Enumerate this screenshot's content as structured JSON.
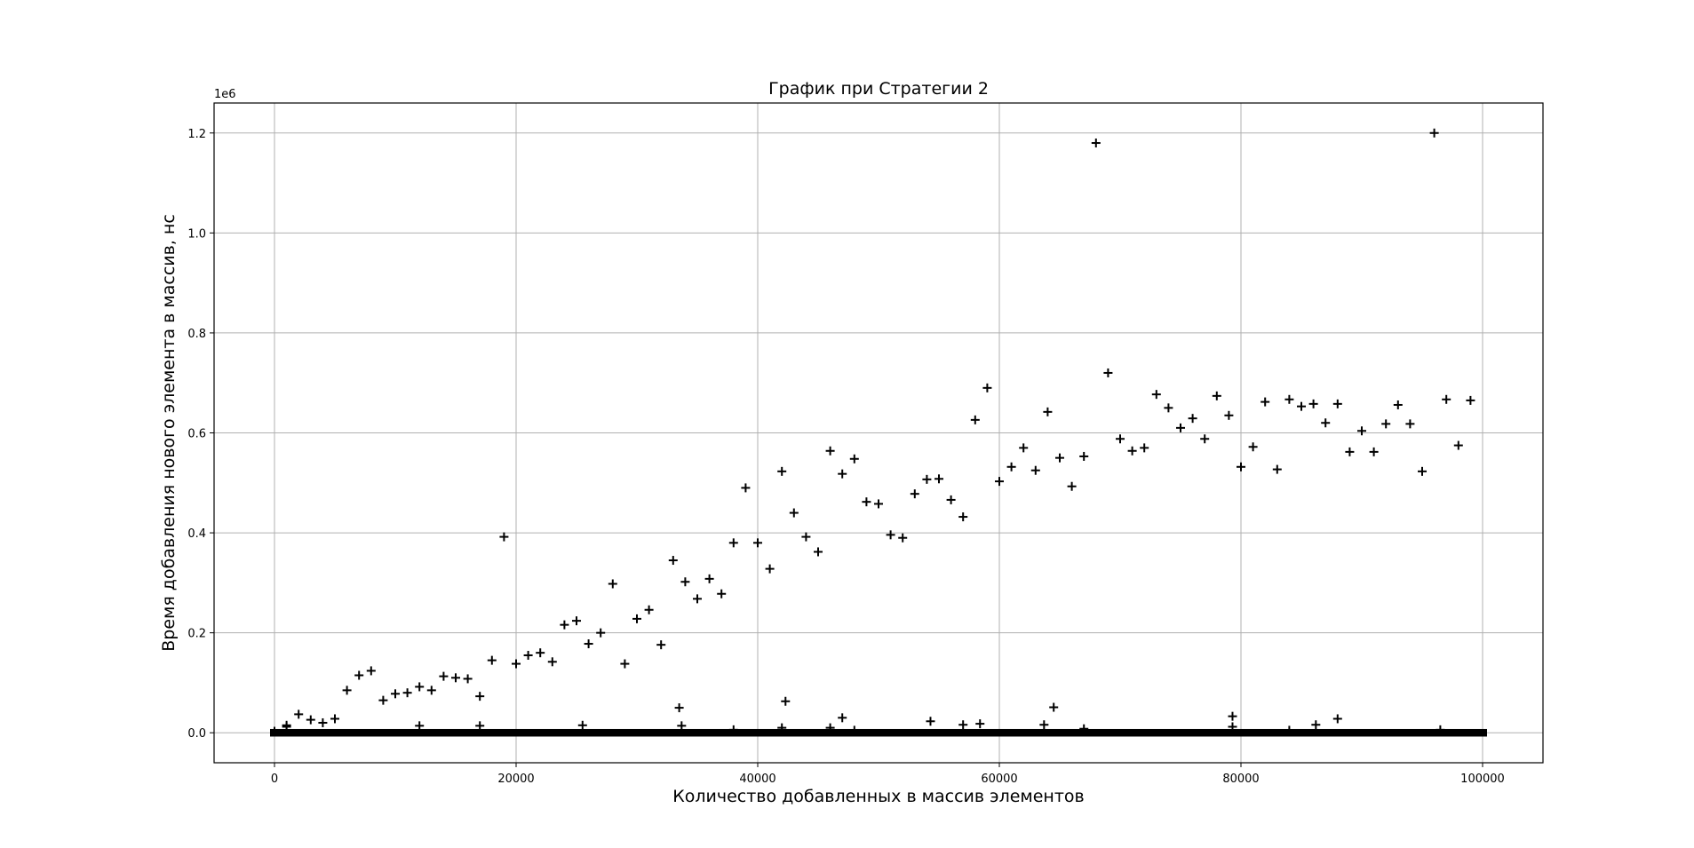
{
  "chart_data": {
    "type": "scatter",
    "title": "График при Стратегии 2",
    "xlabel": "Количество добавленных в массив элементов",
    "ylabel": "Время добавления нового элемента в массив, нс",
    "y_offset_label": "1e6",
    "xlim": [
      -5000,
      105000
    ],
    "ylim": [
      -0.06,
      1.26
    ],
    "y_unit_multiplier": 1000000,
    "xticks": [
      0,
      20000,
      40000,
      60000,
      80000,
      100000
    ],
    "xtick_labels": [
      "0",
      "20000",
      "40000",
      "60000",
      "80000",
      "100000"
    ],
    "yticks": [
      0.0,
      0.2,
      0.4,
      0.6,
      0.8,
      1.0,
      1.2
    ],
    "ytick_labels": [
      "0.0",
      "0.2",
      "0.4",
      "0.6",
      "0.8",
      "1.0",
      "1.2"
    ],
    "grid": true,
    "marker": "+",
    "marker_color": "#000000",
    "baseline_band": {
      "x_range": [
        0,
        100000
      ],
      "y_range": [
        -0.004,
        0.004
      ]
    },
    "series": [
      {
        "values": [
          [
            0,
            0.003
          ],
          [
            1000,
            0.015
          ],
          [
            2000,
            0.037
          ],
          [
            3000,
            0.026
          ],
          [
            4000,
            0.02
          ],
          [
            5000,
            0.028
          ],
          [
            6000,
            0.085
          ],
          [
            7000,
            0.115
          ],
          [
            8000,
            0.124
          ],
          [
            9000,
            0.065
          ],
          [
            10000,
            0.078
          ],
          [
            11000,
            0.08
          ],
          [
            12000,
            0.092
          ],
          [
            13000,
            0.085
          ],
          [
            14000,
            0.113
          ],
          [
            15000,
            0.11
          ],
          [
            16000,
            0.108
          ],
          [
            17000,
            0.073
          ],
          [
            18000,
            0.145
          ],
          [
            19000,
            0.392
          ],
          [
            20000,
            0.138
          ],
          [
            21000,
            0.155
          ],
          [
            22000,
            0.16
          ],
          [
            23000,
            0.142
          ],
          [
            24000,
            0.216
          ],
          [
            25000,
            0.224
          ],
          [
            26000,
            0.178
          ],
          [
            27000,
            0.2
          ],
          [
            28000,
            0.298
          ],
          [
            29000,
            0.138
          ],
          [
            30000,
            0.228
          ],
          [
            31000,
            0.246
          ],
          [
            32000,
            0.176
          ],
          [
            33000,
            0.345
          ],
          [
            34000,
            0.302
          ],
          [
            35000,
            0.268
          ],
          [
            36000,
            0.308
          ],
          [
            37000,
            0.278
          ],
          [
            38000,
            0.38
          ],
          [
            39000,
            0.49
          ],
          [
            40000,
            0.38
          ],
          [
            41000,
            0.328
          ],
          [
            42000,
            0.523
          ],
          [
            43000,
            0.44
          ],
          [
            44000,
            0.392
          ],
          [
            45000,
            0.362
          ],
          [
            46000,
            0.564
          ],
          [
            47000,
            0.518
          ],
          [
            48000,
            0.548
          ],
          [
            49000,
            0.462
          ],
          [
            50000,
            0.458
          ],
          [
            51000,
            0.396
          ],
          [
            52000,
            0.39
          ],
          [
            53000,
            0.478
          ],
          [
            54000,
            0.507
          ],
          [
            55000,
            0.508
          ],
          [
            56000,
            0.466
          ],
          [
            57000,
            0.432
          ],
          [
            58000,
            0.626
          ],
          [
            59000,
            0.69
          ],
          [
            60000,
            0.503
          ],
          [
            61000,
            0.532
          ],
          [
            62000,
            0.57
          ],
          [
            63000,
            0.525
          ],
          [
            64000,
            0.642
          ],
          [
            65000,
            0.55
          ],
          [
            66000,
            0.493
          ],
          [
            67000,
            0.553
          ],
          [
            68000,
            1.18
          ],
          [
            69000,
            0.72
          ],
          [
            70000,
            0.588
          ],
          [
            71000,
            0.564
          ],
          [
            72000,
            0.57
          ],
          [
            73000,
            0.677
          ],
          [
            74000,
            0.65
          ],
          [
            75000,
            0.61
          ],
          [
            76000,
            0.629
          ],
          [
            77000,
            0.588
          ],
          [
            78000,
            0.674
          ],
          [
            79000,
            0.635
          ],
          [
            80000,
            0.532
          ],
          [
            81000,
            0.572
          ],
          [
            82000,
            0.662
          ],
          [
            83000,
            0.527
          ],
          [
            84000,
            0.667
          ],
          [
            85000,
            0.653
          ],
          [
            86000,
            0.658
          ],
          [
            87000,
            0.62
          ],
          [
            88000,
            0.658
          ],
          [
            89000,
            0.562
          ],
          [
            90000,
            0.604
          ],
          [
            91000,
            0.562
          ],
          [
            92000,
            0.618
          ],
          [
            93000,
            0.656
          ],
          [
            94000,
            0.618
          ],
          [
            95000,
            0.523
          ],
          [
            96000,
            1.2
          ],
          [
            97000,
            0.667
          ],
          [
            98000,
            0.575
          ],
          [
            99000,
            0.665
          ],
          [
            1000,
            0.012
          ],
          [
            12000,
            0.014
          ],
          [
            17000,
            0.014
          ],
          [
            25500,
            0.015
          ],
          [
            33500,
            0.05
          ],
          [
            33700,
            0.014
          ],
          [
            38000,
            0.006
          ],
          [
            42000,
            0.01
          ],
          [
            42300,
            0.063
          ],
          [
            46000,
            0.01
          ],
          [
            47000,
            0.03
          ],
          [
            48000,
            0.005
          ],
          [
            54300,
            0.023
          ],
          [
            57000,
            0.016
          ],
          [
            58400,
            0.018
          ],
          [
            63700,
            0.016
          ],
          [
            64500,
            0.051
          ],
          [
            67000,
            0.008
          ],
          [
            79300,
            0.033
          ],
          [
            79300,
            0.012
          ],
          [
            84000,
            0.005
          ],
          [
            86200,
            0.016
          ],
          [
            88000,
            0.028
          ],
          [
            96500,
            0.006
          ]
        ]
      }
    ]
  }
}
